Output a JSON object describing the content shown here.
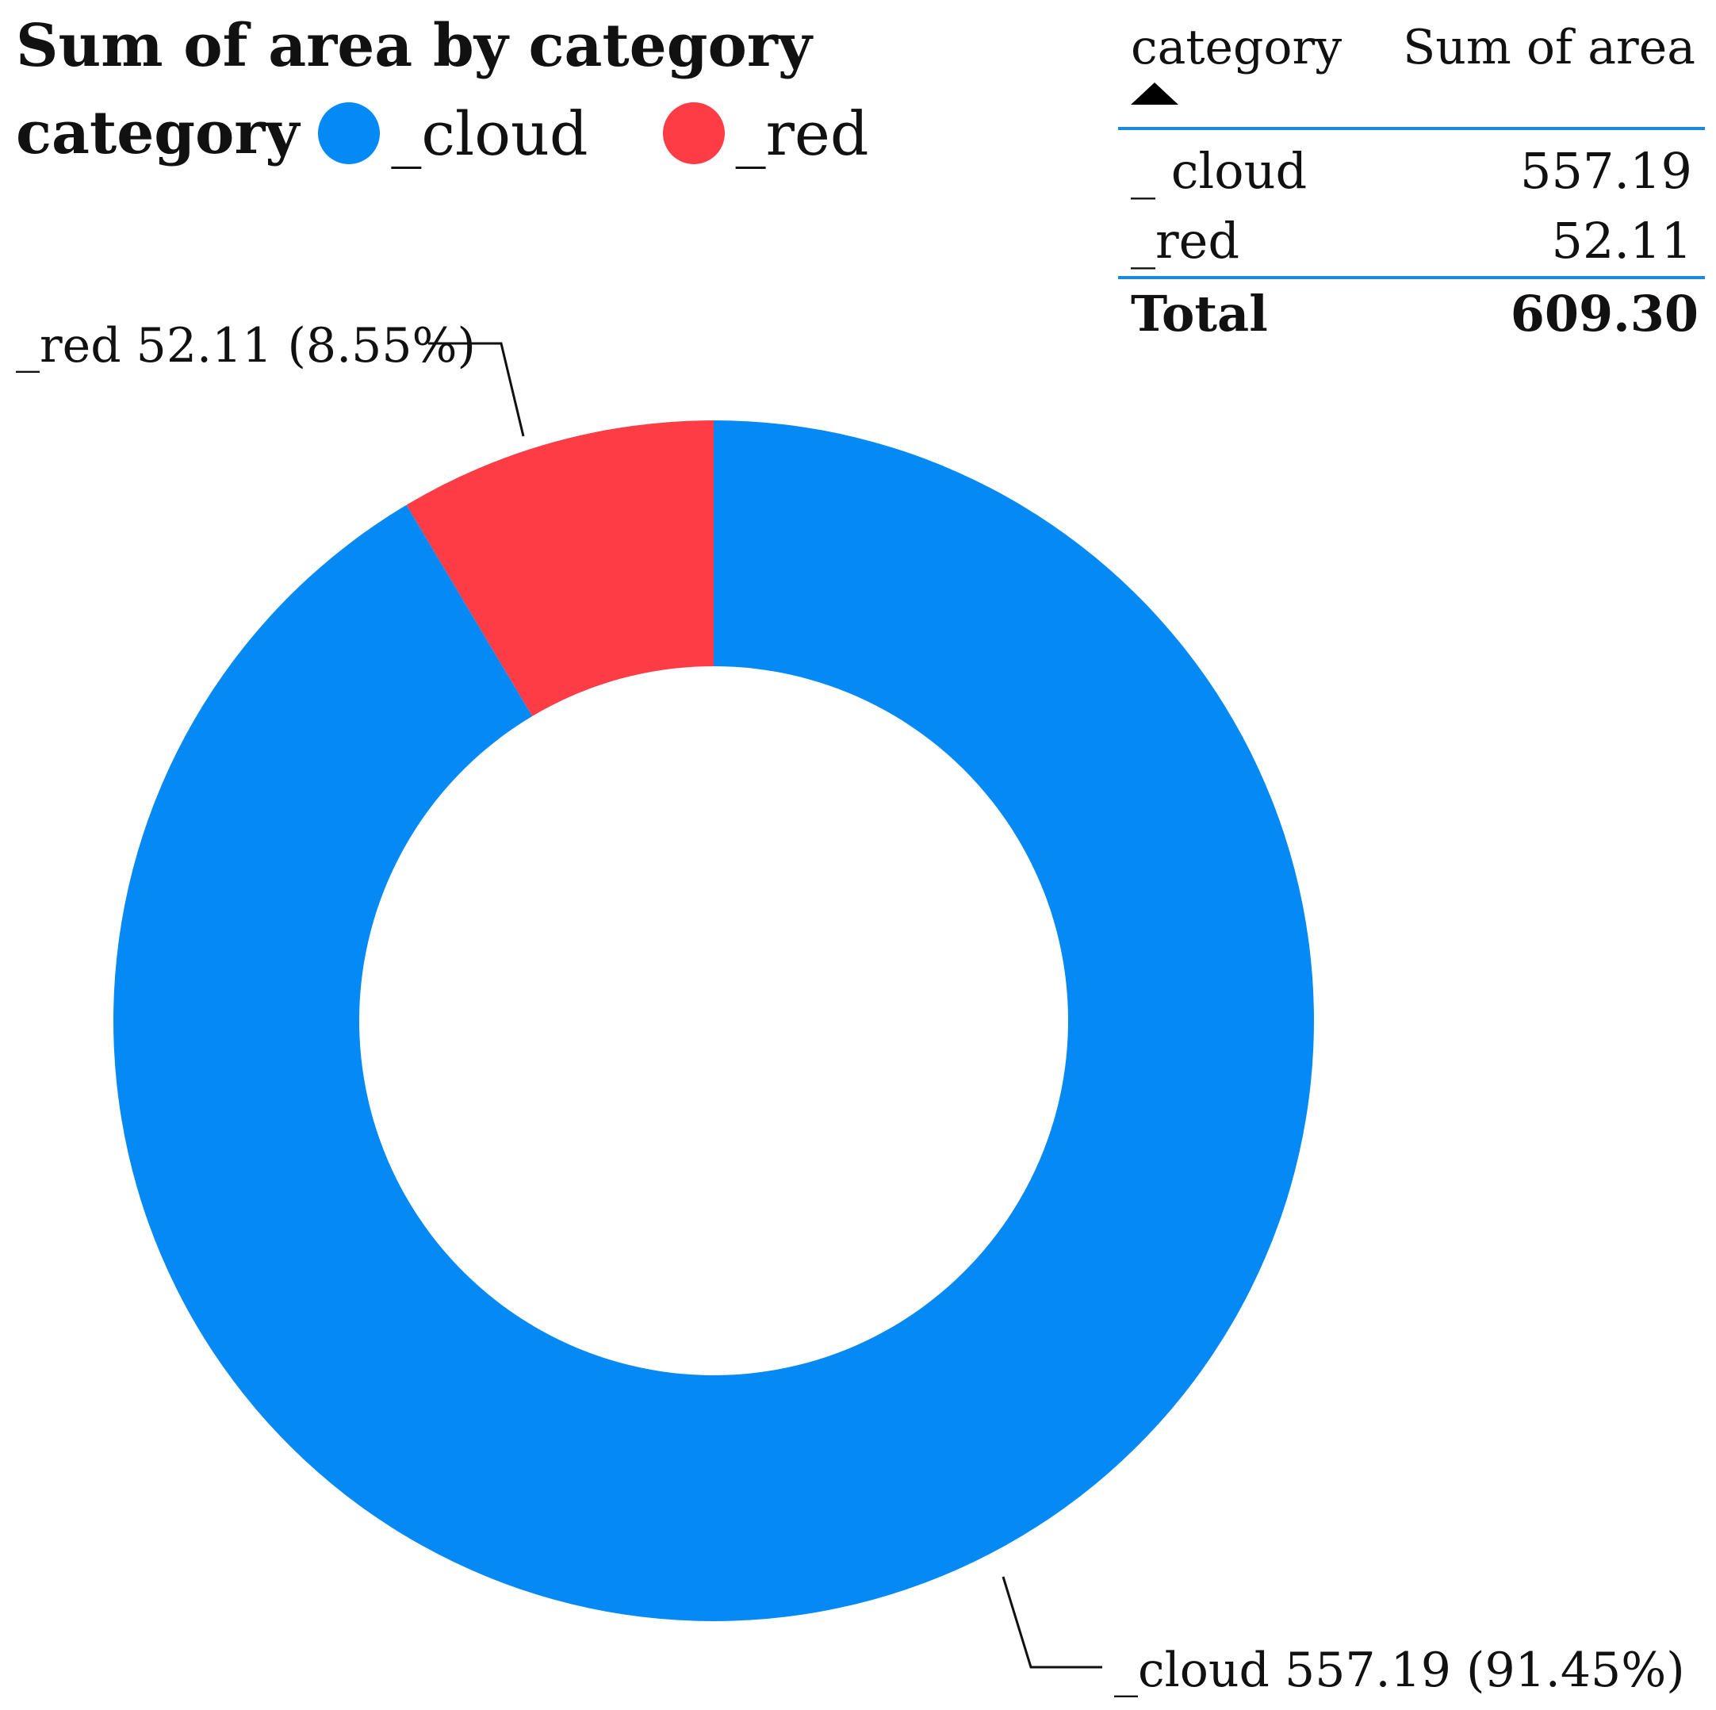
{
  "chart_data": {
    "type": "pie",
    "title": "Sum of area by category",
    "legend": {
      "title": "category",
      "placement": "top-left",
      "items": [
        {
          "label": "_cloud",
          "color": "#0489f5"
        },
        {
          "label": "_red",
          "color": "#fe3c46"
        }
      ]
    },
    "donut": true,
    "slices": [
      {
        "label": "_red",
        "value": 52.11,
        "percent": "8.55%",
        "color": "#fe3c46",
        "data_label": "_red 52.11 (8.55%)"
      },
      {
        "label": "_cloud",
        "value": 557.19,
        "percent": "91.45%",
        "color": "#0489f5",
        "data_label": "_cloud 557.19 (91.45%)"
      }
    ]
  },
  "table": {
    "headers": {
      "category": "category",
      "value": "Sum of area"
    },
    "sort_icon": "sort-ascending-icon",
    "rows": [
      {
        "category": "_ cloud",
        "value": "557.19"
      },
      {
        "category": "_red",
        "value": "52.11"
      }
    ],
    "total": {
      "label": "Total",
      "value": "609.30"
    }
  }
}
